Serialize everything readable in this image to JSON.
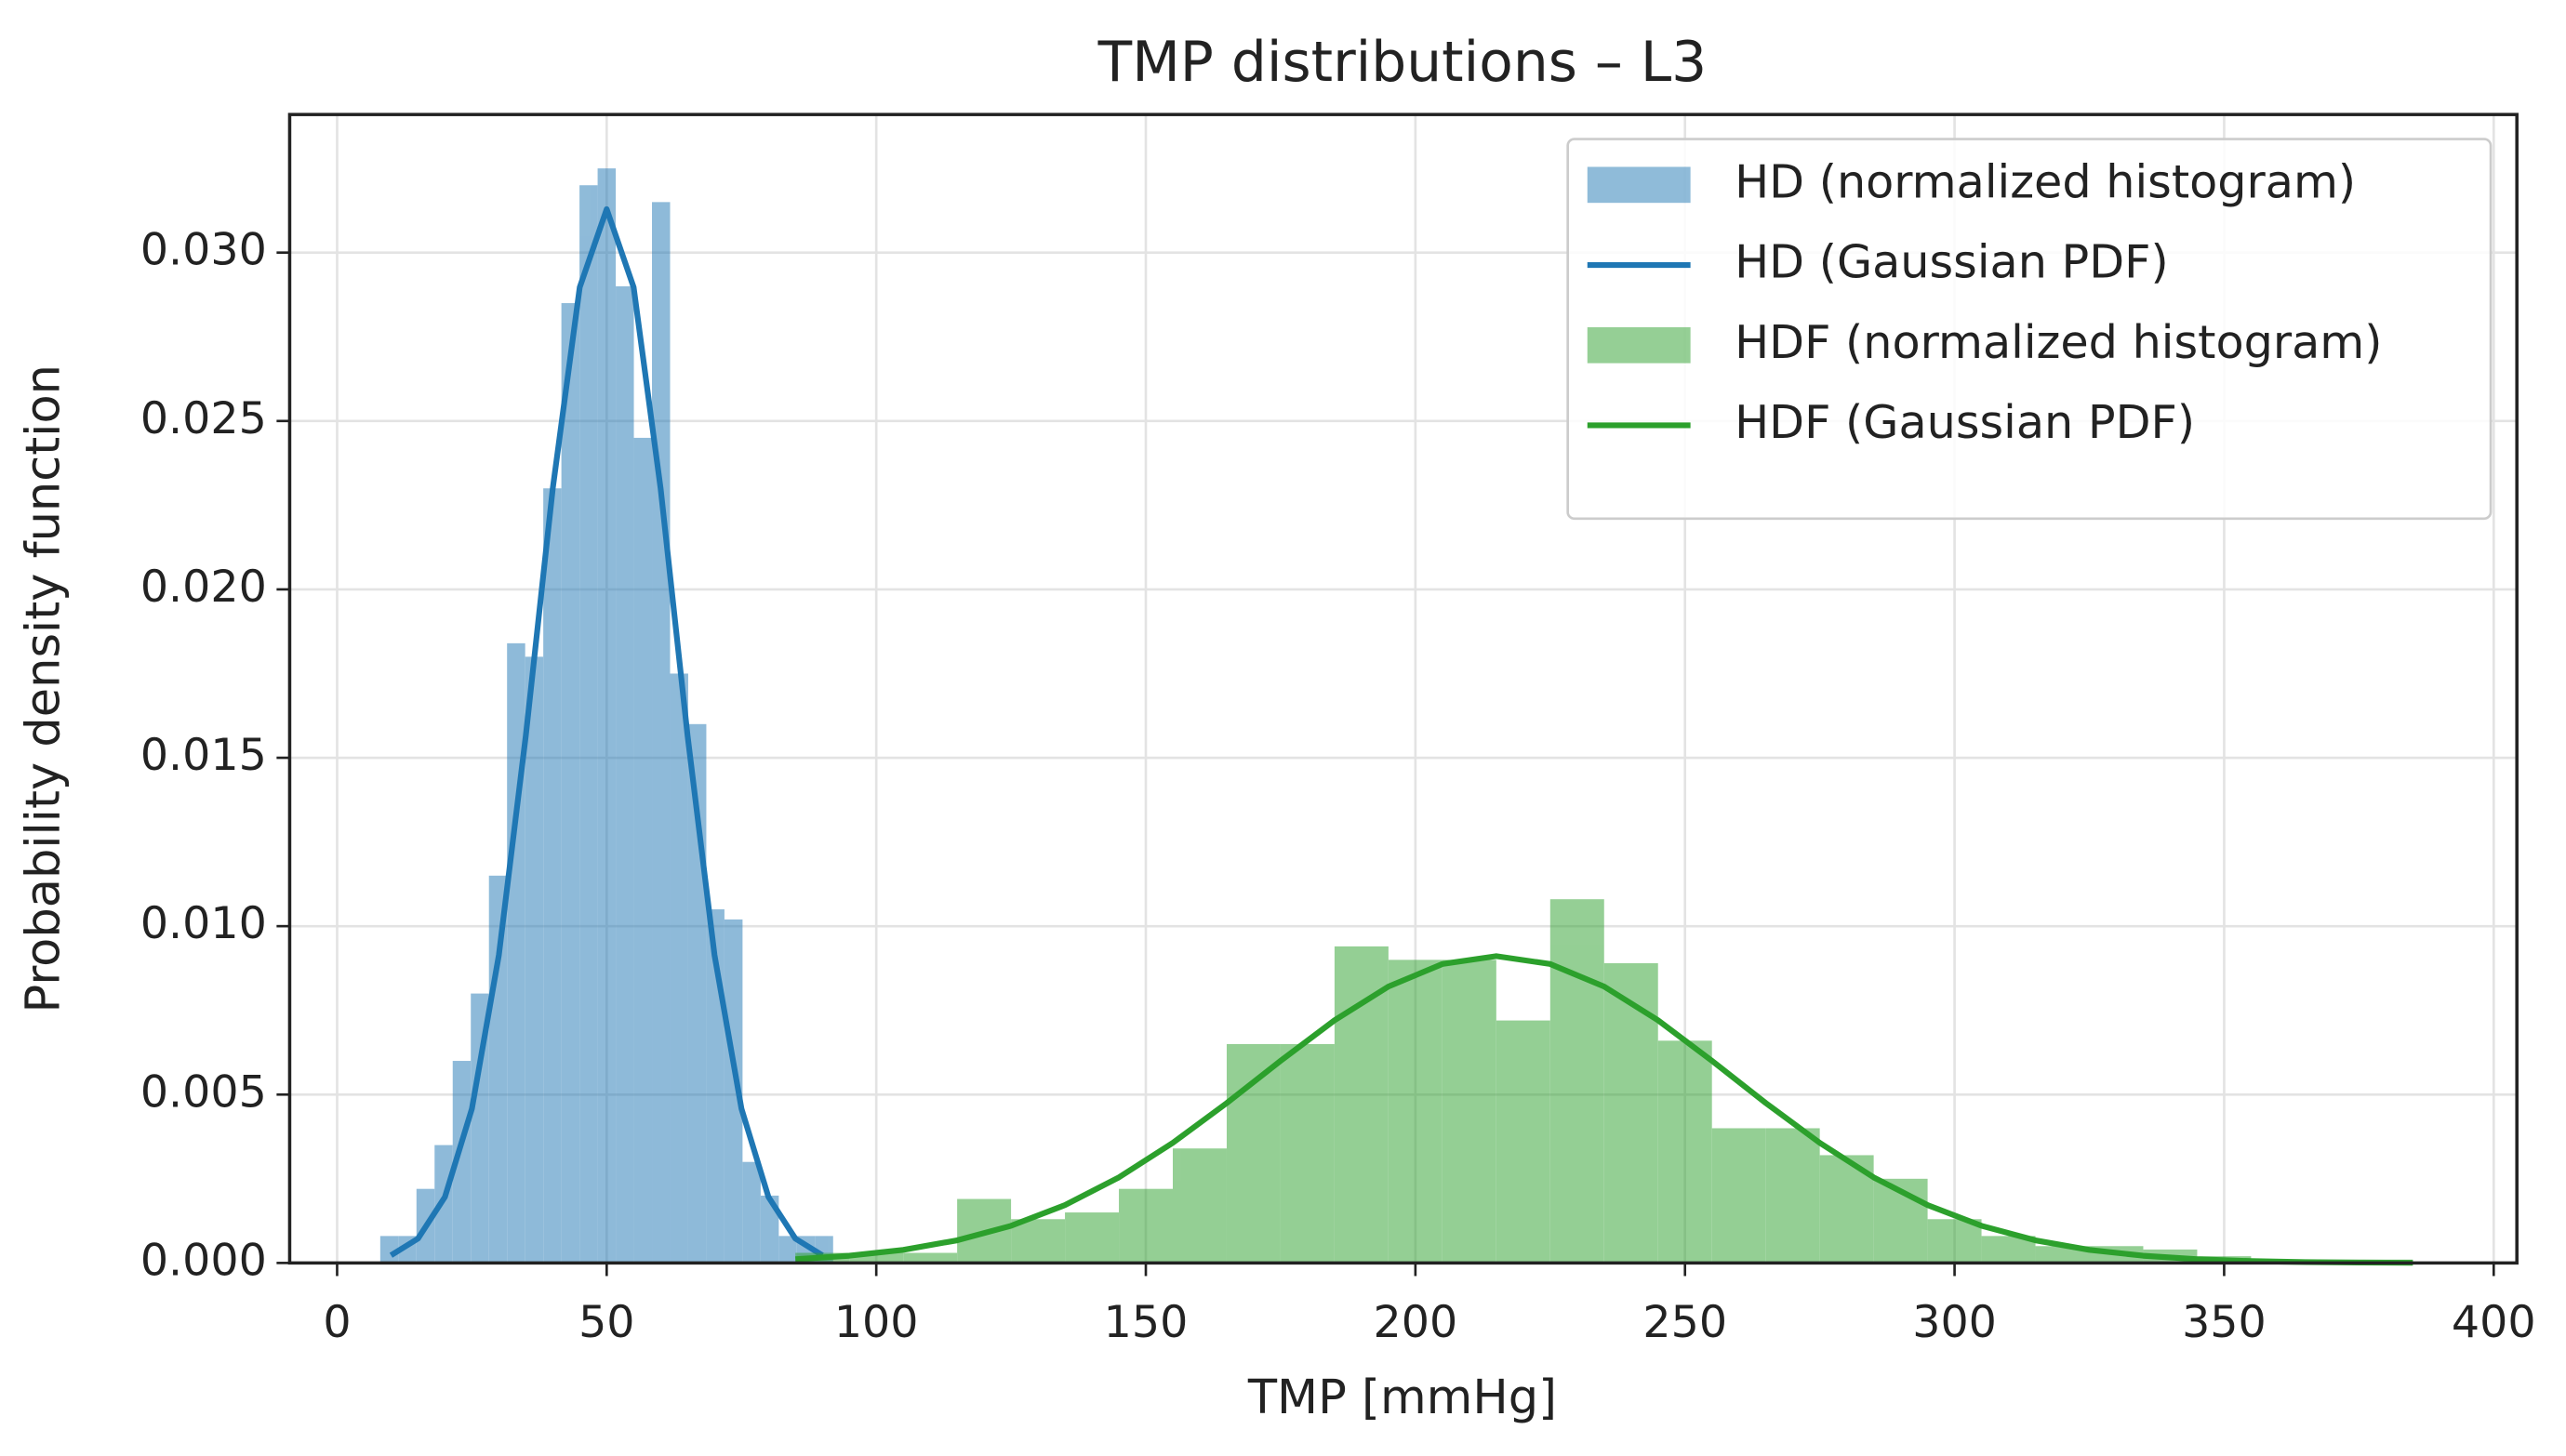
{
  "chart_data": {
    "type": "histogram",
    "title": "TMP distributions – L3",
    "x_label": "TMP [mmHg]",
    "y_label": "Probability density function",
    "xlim": [
      -8.8,
      404.3
    ],
    "ylim": [
      0,
      0.0341
    ],
    "xticks": [
      0,
      50,
      100,
      150,
      200,
      250,
      300,
      350,
      400
    ],
    "yticks": [
      {
        "value": 0,
        "label": "0.000"
      },
      {
        "value": 0.005,
        "label": "0.005"
      },
      {
        "value": 0.01,
        "label": "0.010"
      },
      {
        "value": 0.015,
        "label": "0.015"
      },
      {
        "value": 0.02,
        "label": "0.020"
      },
      {
        "value": 0.025,
        "label": "0.025"
      },
      {
        "value": 0.03,
        "label": "0.030"
      }
    ],
    "grid": true,
    "legend": "upper right",
    "series": [
      {
        "name": "HD (normalized histogram)",
        "type": "histogram",
        "color": "#1f77b4",
        "alpha": 0.5,
        "bins": [
          8,
          11.36,
          14.72,
          18.08,
          21.44,
          24.8,
          28.16,
          31.52,
          34.88,
          38.24,
          41.6,
          44.96,
          48.32,
          51.68,
          55.04,
          58.4,
          61.76,
          65.12,
          68.48,
          71.84,
          75.2,
          78.56,
          81.92,
          85.28,
          88.64,
          92
        ],
        "values": [
          0.0008,
          0.0008,
          0.0022,
          0.0035,
          0.006,
          0.008,
          0.0115,
          0.0184,
          0.018,
          0.023,
          0.0285,
          0.032,
          0.0325,
          0.029,
          0.0245,
          0.0315,
          0.0175,
          0.016,
          0.0105,
          0.0102,
          0.003,
          0.002,
          0.0008,
          0.0008,
          0.0008
        ]
      },
      {
        "name": "HD (Gaussian PDF)",
        "type": "line",
        "color": "#1f77b4",
        "x": [
          10,
          15,
          20,
          25,
          30,
          35,
          40,
          45,
          50,
          55,
          60,
          65,
          70,
          75,
          80,
          85,
          90
        ],
        "values": [
          0.000228,
          0.000723,
          0.00196,
          0.00458,
          0.00914,
          0.01566,
          0.023,
          0.02897,
          0.03129,
          0.02897,
          0.023,
          0.01566,
          0.00914,
          0.00458,
          0.00196,
          0.000723,
          0.000228
        ]
      },
      {
        "name": "HDF (normalized histogram)",
        "type": "histogram",
        "color": "#2ca02c",
        "alpha": 0.5,
        "bins": [
          85,
          95,
          105,
          115,
          125,
          135,
          145,
          155,
          165,
          175,
          185,
          195,
          205,
          215,
          225,
          235,
          245,
          255,
          265,
          275,
          285,
          295,
          305,
          315,
          325,
          335,
          345,
          355,
          365,
          375,
          385
        ],
        "values": [
          0.0003,
          0.0003,
          0.0003,
          0.0019,
          0.0013,
          0.0015,
          0.0022,
          0.0034,
          0.0065,
          0.0065,
          0.0094,
          0.009,
          0.009,
          0.0072,
          0.0108,
          0.0089,
          0.0066,
          0.004,
          0.004,
          0.0032,
          0.0025,
          0.0013,
          0.0008,
          0.0005,
          0.0005,
          0.0004,
          0.0002,
          0.0001,
          0.0001,
          0.0001
        ]
      },
      {
        "name": "HDF (Gaussian PDF)",
        "type": "line",
        "color": "#2ca02c",
        "x": [
          85,
          95,
          105,
          115,
          125,
          135,
          145,
          155,
          165,
          175,
          185,
          195,
          205,
          215,
          225,
          235,
          245,
          255,
          265,
          275,
          285,
          295,
          305,
          315,
          325,
          335,
          345,
          355,
          365,
          375,
          385
        ],
        "values": [
          0.000111,
          0.000214,
          0.000389,
          0.000672,
          0.001103,
          0.001718,
          0.002541,
          0.003566,
          0.004747,
          0.006003,
          0.007205,
          0.008208,
          0.008876,
          0.00911,
          0.008876,
          0.008208,
          0.007205,
          0.006003,
          0.004747,
          0.003566,
          0.002541,
          0.001718,
          0.001103,
          0.000672,
          0.000389,
          0.000214,
          0.000111,
          5.51e-05,
          2.59e-05,
          1.15e-05,
          4.9e-06
        ]
      }
    ]
  }
}
